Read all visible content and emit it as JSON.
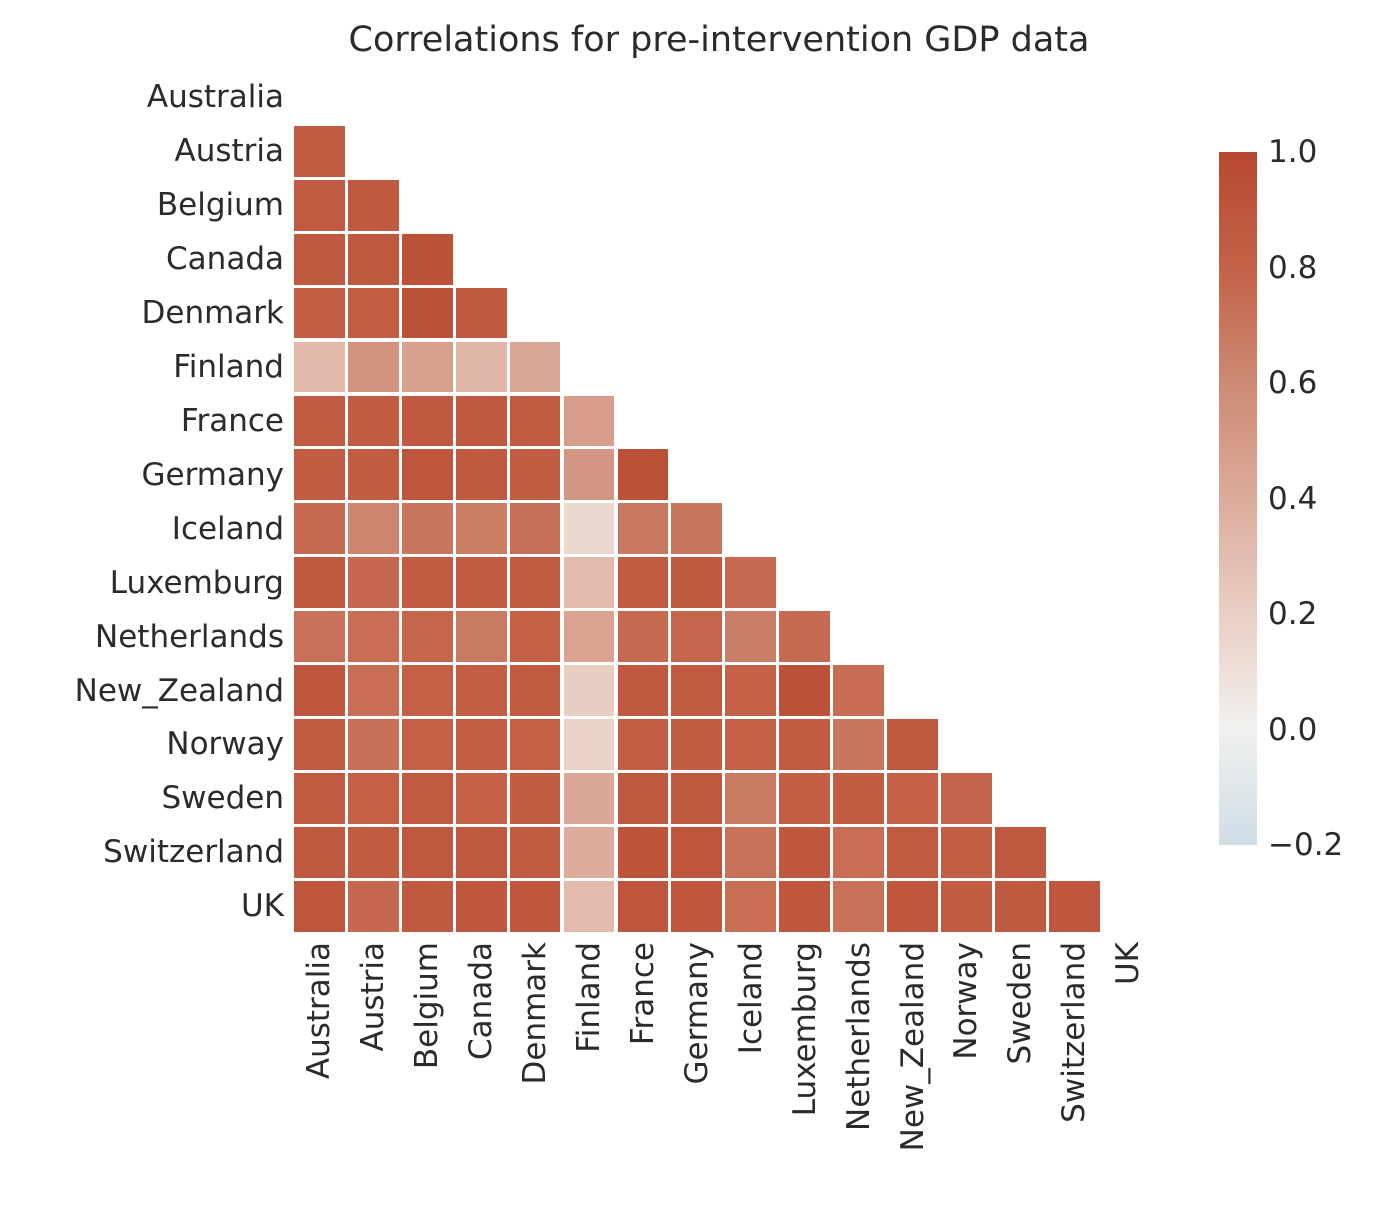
{
  "title": "Correlations for pre-intervention GDP data",
  "chart_data": {
    "type": "heatmap",
    "subtype": "correlation-matrix-lower-triangle",
    "title": "Correlations for pre-intervention GDP data",
    "mask": "upper triangle and diagonal hidden",
    "grid": "white gridlines between cells",
    "vmin": -0.2,
    "vmax": 1.0,
    "legend_position": "right colorbar",
    "labels": [
      "Australia",
      "Austria",
      "Belgium",
      "Canada",
      "Denmark",
      "Finland",
      "France",
      "Germany",
      "Iceland",
      "Luxemburg",
      "Netherlands",
      "New_Zealand",
      "Norway",
      "Sweden",
      "Switzerland",
      "UK"
    ],
    "rows": [
      {
        "label": "Australia",
        "values": []
      },
      {
        "label": "Austria",
        "values": [
          0.84
        ]
      },
      {
        "label": "Belgium",
        "values": [
          0.86,
          0.87
        ]
      },
      {
        "label": "Canada",
        "values": [
          0.88,
          0.88,
          0.92
        ]
      },
      {
        "label": "Denmark",
        "values": [
          0.83,
          0.83,
          0.92,
          0.87
        ]
      },
      {
        "label": "Finland",
        "values": [
          0.33,
          0.55,
          0.46,
          0.34,
          0.43
        ]
      },
      {
        "label": "France",
        "values": [
          0.85,
          0.85,
          0.87,
          0.87,
          0.85,
          0.48
        ]
      },
      {
        "label": "Germany",
        "values": [
          0.84,
          0.85,
          0.9,
          0.87,
          0.84,
          0.53,
          0.93
        ]
      },
      {
        "label": "Iceland",
        "values": [
          0.76,
          0.62,
          0.7,
          0.67,
          0.73,
          0.15,
          0.69,
          0.7
        ]
      },
      {
        "label": "Luxemburg",
        "values": [
          0.87,
          0.77,
          0.85,
          0.85,
          0.86,
          0.31,
          0.86,
          0.87,
          0.76
        ]
      },
      {
        "label": "Netherlands",
        "values": [
          0.72,
          0.74,
          0.78,
          0.68,
          0.82,
          0.45,
          0.76,
          0.78,
          0.66,
          0.76
        ]
      },
      {
        "label": "New_Zealand",
        "values": [
          0.9,
          0.74,
          0.82,
          0.83,
          0.86,
          0.21,
          0.87,
          0.86,
          0.8,
          0.92,
          0.75
        ]
      },
      {
        "label": "Norway",
        "values": [
          0.86,
          0.73,
          0.82,
          0.83,
          0.82,
          0.18,
          0.83,
          0.84,
          0.8,
          0.85,
          0.7,
          0.88
        ]
      },
      {
        "label": "Sweden",
        "values": [
          0.86,
          0.82,
          0.86,
          0.8,
          0.85,
          0.43,
          0.88,
          0.88,
          0.68,
          0.83,
          0.84,
          0.82,
          0.79
        ]
      },
      {
        "label": "Switzerland",
        "values": [
          0.88,
          0.85,
          0.88,
          0.88,
          0.85,
          0.4,
          0.91,
          0.9,
          0.72,
          0.89,
          0.74,
          0.86,
          0.83,
          0.88
        ]
      },
      {
        "label": "UK",
        "values": [
          0.9,
          0.77,
          0.87,
          0.89,
          0.89,
          0.31,
          0.9,
          0.89,
          0.74,
          0.89,
          0.72,
          0.89,
          0.85,
          0.87,
          0.89
        ]
      }
    ],
    "colormap_stops": [
      {
        "v": -0.2,
        "c": "#cfdde6"
      },
      {
        "v": 0.0,
        "c": "#f1f1ef"
      },
      {
        "v": 0.2,
        "c": "#e9cfc4"
      },
      {
        "v": 0.4,
        "c": "#dcab9b"
      },
      {
        "v": 0.6,
        "c": "#cd8a74"
      },
      {
        "v": 0.8,
        "c": "#c46248"
      },
      {
        "v": 1.0,
        "c": "#b6492f"
      }
    ]
  },
  "colorbar": {
    "tick_labels": [
      "1.0",
      "0.8",
      "0.6",
      "0.4",
      "0.2",
      "0.0",
      "−0.2"
    ]
  }
}
